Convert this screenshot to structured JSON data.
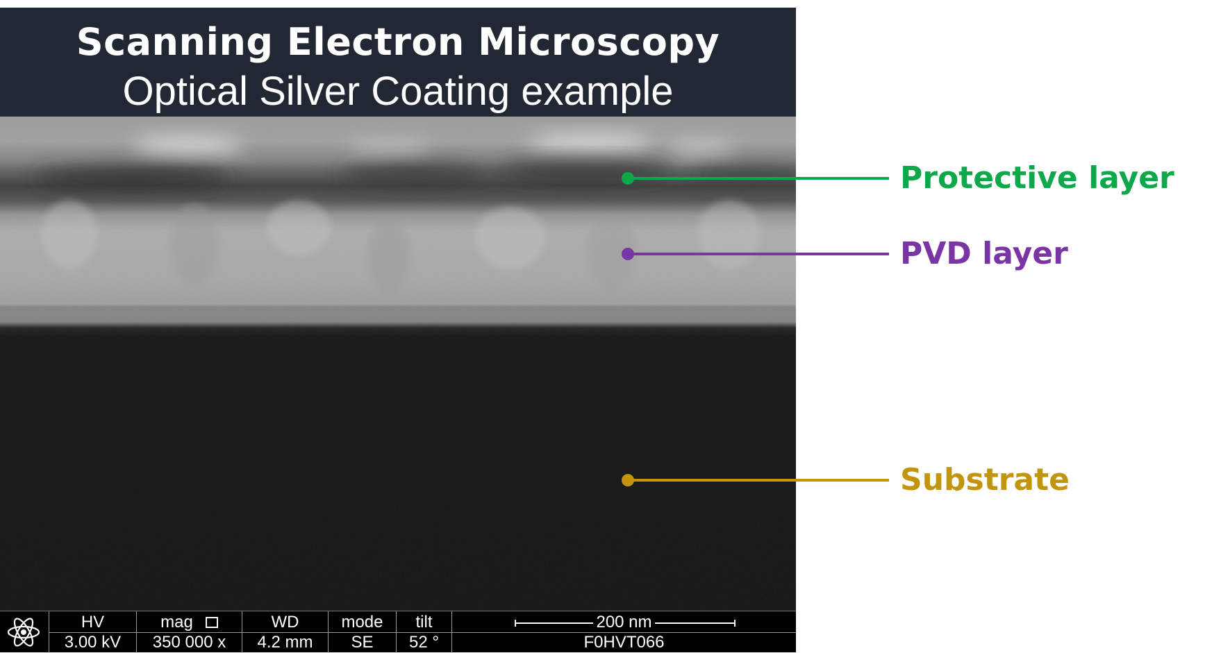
{
  "header": {
    "title": "Scanning Electron Microscopy",
    "subtitle": "Optical Silver Coating example"
  },
  "labels": {
    "protective": {
      "text": "Protective layer",
      "color": "#0DA84A"
    },
    "pvd": {
      "text": "PVD layer",
      "color": "#7A35A5"
    },
    "substrate": {
      "text": "Substrate",
      "color": "#C3950D"
    }
  },
  "databar": {
    "logo_icon": "atom-icon",
    "hv": {
      "label": "HV",
      "value": "3.00 kV"
    },
    "mag": {
      "label": "mag",
      "value": "350 000 x",
      "icon": "frame-icon"
    },
    "wd": {
      "label": "WD",
      "value": "4.2 mm"
    },
    "mode": {
      "label": "mode",
      "value": "SE"
    },
    "tilt": {
      "label": "tilt",
      "value": "52 °"
    },
    "scale_label": "200 nm",
    "image_id": "F0HVT066"
  }
}
